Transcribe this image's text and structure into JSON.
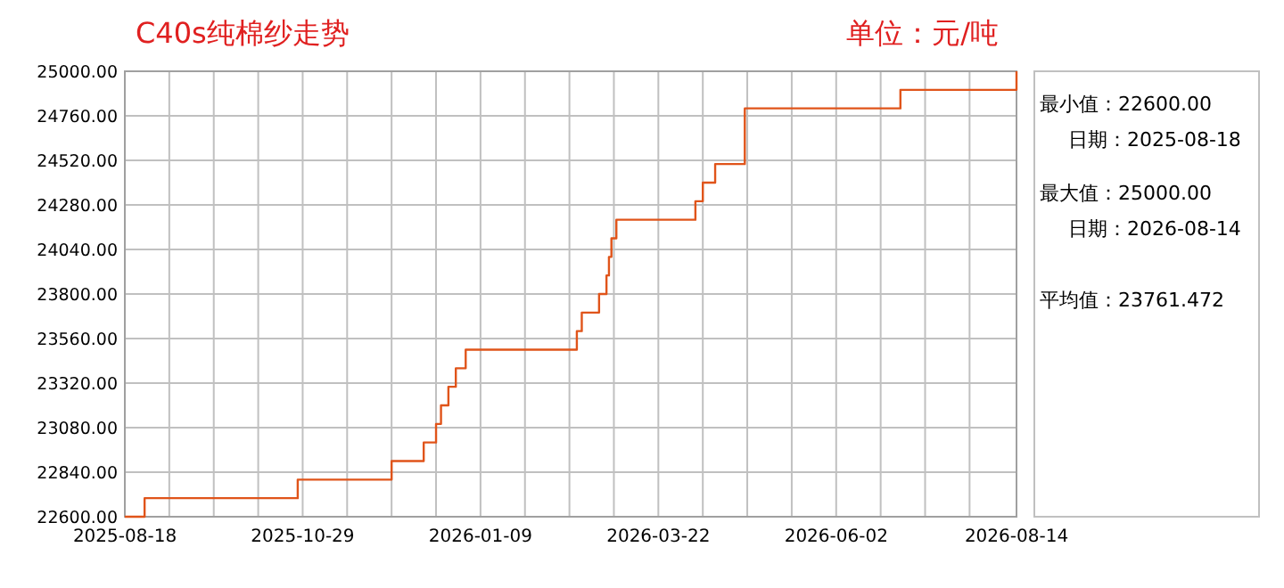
{
  "chart_data": {
    "type": "step",
    "title": "C40s纯棉纱走势",
    "subtitle": "单位：元/吨",
    "x": [
      "2025-08-18",
      "2025-08-26",
      "2025-10-27",
      "2025-12-04",
      "2025-12-17",
      "2025-12-22",
      "2025-12-24",
      "2025-12-27",
      "2025-12-30",
      "2026-01-03",
      "2026-02-17",
      "2026-02-19",
      "2026-02-26",
      "2026-03-01",
      "2026-03-02",
      "2026-03-03",
      "2026-03-05",
      "2026-04-06",
      "2026-04-09",
      "2026-04-14",
      "2026-04-26",
      "2026-06-28",
      "2026-08-14"
    ],
    "series": [
      {
        "color": "#e0541a",
        "values": [
          22600,
          22700,
          22800,
          22900,
          23000,
          23100,
          23200,
          23300,
          23400,
          23500,
          23600,
          23700,
          23800,
          23900,
          24000,
          24100,
          24200,
          24300,
          24400,
          24500,
          24800,
          24900,
          25000
        ]
      }
    ],
    "xlim": [
      "2025-08-18",
      "2026-08-14"
    ],
    "xticks": [
      {
        "value": "2025-08-18",
        "label": "2025-08-18"
      },
      {
        "value": "2025-09-05",
        "label": null
      },
      {
        "value": "2025-09-23",
        "label": null
      },
      {
        "value": "2025-10-11",
        "label": null
      },
      {
        "value": "2025-10-29",
        "label": "2025-10-29"
      },
      {
        "value": "2025-11-16",
        "label": null
      },
      {
        "value": "2025-12-04",
        "label": null
      },
      {
        "value": "2025-12-22",
        "label": null
      },
      {
        "value": "2026-01-09",
        "label": "2026-01-09"
      },
      {
        "value": "2026-01-27",
        "label": null
      },
      {
        "value": "2026-02-14",
        "label": null
      },
      {
        "value": "2026-03-04",
        "label": null
      },
      {
        "value": "2026-03-22",
        "label": "2026-03-22"
      },
      {
        "value": "2026-04-09",
        "label": null
      },
      {
        "value": "2026-04-27",
        "label": null
      },
      {
        "value": "2026-05-15",
        "label": null
      },
      {
        "value": "2026-06-02",
        "label": "2026-06-02"
      },
      {
        "value": "2026-06-20",
        "label": null
      },
      {
        "value": "2026-07-08",
        "label": null
      },
      {
        "value": "2026-07-26",
        "label": null
      },
      {
        "value": "2026-08-14",
        "label": "2026-08-14"
      }
    ],
    "ylim": [
      22600,
      25000
    ],
    "yticks": [
      {
        "value": 22600,
        "label": "22600.00"
      },
      {
        "value": 22840,
        "label": "22840.00"
      },
      {
        "value": 23080,
        "label": "23080.00"
      },
      {
        "value": 23320,
        "label": "23320.00"
      },
      {
        "value": 23560,
        "label": "23560.00"
      },
      {
        "value": 23800,
        "label": "23800.00"
      },
      {
        "value": 24040,
        "label": "24040.00"
      },
      {
        "value": 24280,
        "label": "24280.00"
      },
      {
        "value": 24520,
        "label": "24520.00"
      },
      {
        "value": 24760,
        "label": "24760.00"
      },
      {
        "value": 25000,
        "label": "25000.00"
      }
    ],
    "grid": true,
    "marker": "none",
    "line_style": "solid",
    "annotations": [
      "最小值：22600.00",
      "日期：2025-08-18",
      "最大值：25000.00",
      "日期：2026-08-14",
      "平均值：23761.472"
    ]
  }
}
